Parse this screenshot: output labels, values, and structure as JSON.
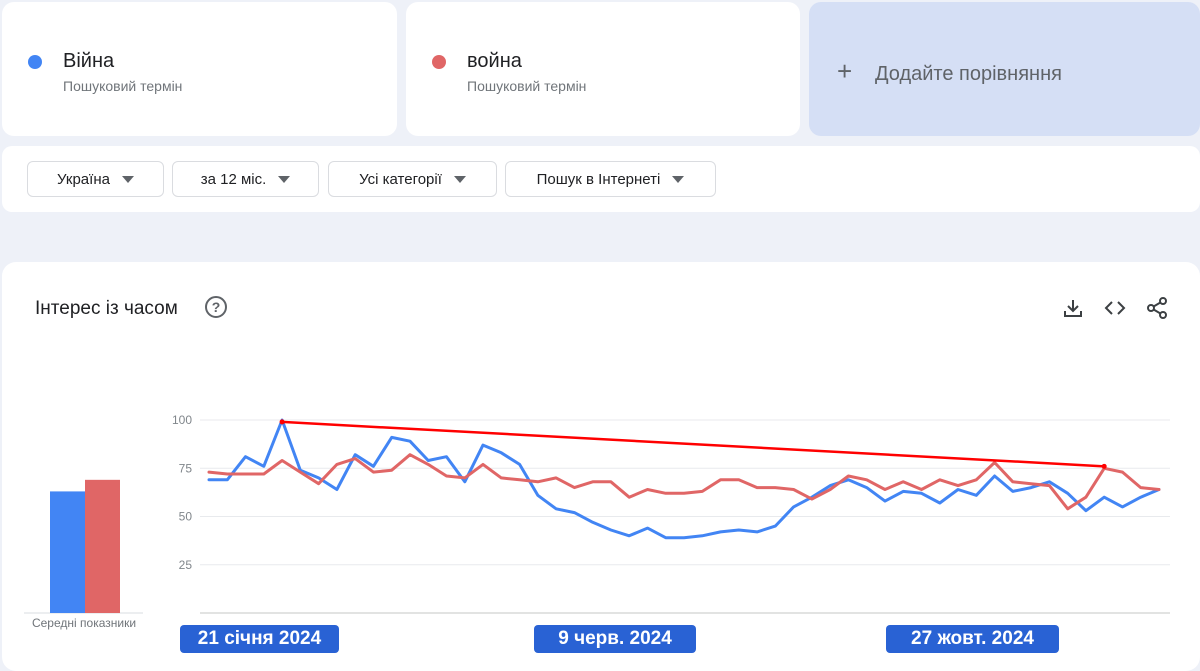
{
  "terms": [
    {
      "name": "Війна",
      "sub": "Пошуковий термін",
      "color": "#4285f4"
    },
    {
      "name": "война",
      "sub": "Пошуковий термін",
      "color": "#e06666"
    }
  ],
  "add_compare": {
    "label": "Додайте порівняння",
    "icon": "plus-icon"
  },
  "filters": [
    {
      "label": "Україна"
    },
    {
      "label": "за 12 міс."
    },
    {
      "label": "Усі категорії"
    },
    {
      "label": "Пошук в Інтернеті"
    }
  ],
  "panel": {
    "title": "Інтерес із часом",
    "help_icon": "question-mark-icon",
    "help_text": "?",
    "tools": [
      "download-icon",
      "embed-code-icon",
      "share-icon"
    ]
  },
  "chart_data": {
    "type": "line",
    "y_ticks": [
      100,
      75,
      50,
      25
    ],
    "ylim": [
      0,
      100
    ],
    "grid": true,
    "x_tick_labels": [
      "21 січня 2024",
      "9 черв. 2024",
      "27 жовт. 2024"
    ],
    "averages_label": "Середні показники",
    "averages": [
      {
        "name": "Війна",
        "value": 63
      },
      {
        "name": "война",
        "value": 69
      }
    ],
    "series": [
      {
        "name": "Війна",
        "color": "#4285f4",
        "values": [
          69,
          69,
          81,
          76,
          100,
          74,
          70,
          64,
          82,
          76,
          91,
          89,
          79,
          81,
          68,
          87,
          83,
          77,
          61,
          54,
          52,
          47,
          43,
          40,
          44,
          39,
          39,
          40,
          42,
          43,
          42,
          45,
          55,
          60,
          66,
          69,
          65,
          58,
          63,
          62,
          57,
          64,
          61,
          71,
          63,
          65,
          68,
          62,
          53,
          60,
          55,
          60,
          64
        ]
      },
      {
        "name": "война",
        "color": "#e06666",
        "values": [
          73,
          72,
          72,
          72,
          79,
          73,
          67,
          77,
          80,
          73,
          74,
          82,
          77,
          71,
          70,
          77,
          70,
          69,
          68,
          70,
          65,
          68,
          68,
          60,
          64,
          62,
          62,
          63,
          69,
          69,
          65,
          65,
          64,
          59,
          64,
          71,
          69,
          64,
          68,
          64,
          69,
          66,
          69,
          78,
          68,
          67,
          66,
          54,
          60,
          75,
          73,
          65,
          64
        ]
      }
    ],
    "annotations": [
      {
        "type": "trend-line",
        "color": "#ff0000",
        "from_index": 4,
        "from_value": 99,
        "to_index": 49,
        "to_value": 76
      }
    ]
  }
}
